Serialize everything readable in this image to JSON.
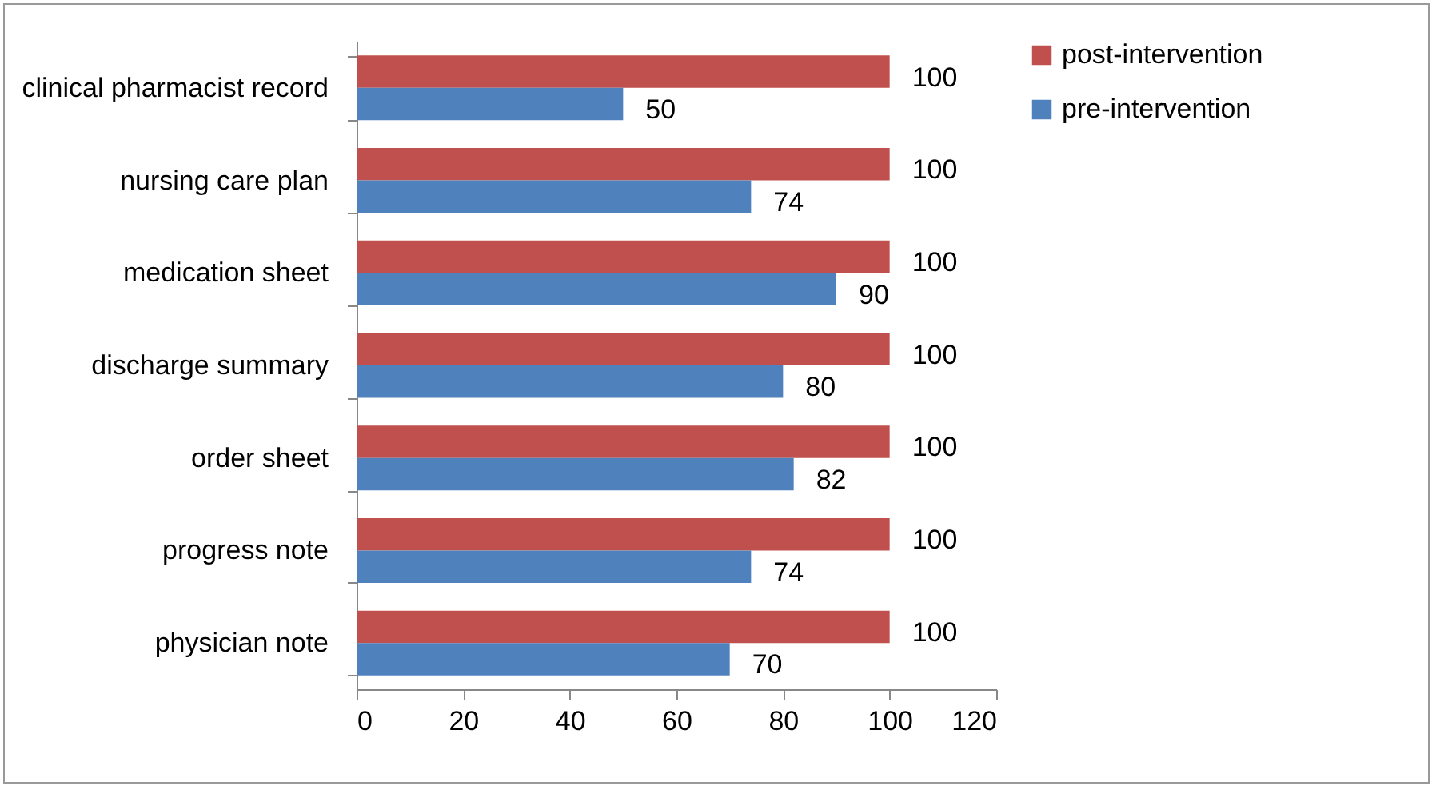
{
  "chart_data": {
    "type": "bar",
    "orientation": "horizontal",
    "categories": [
      "clinical pharmacist record",
      "nursing care plan",
      "medication sheet",
      "discharge summary",
      "order sheet",
      "progress note",
      "physician note"
    ],
    "series": [
      {
        "name": "post-intervention",
        "color": "#c0504d",
        "values": [
          100,
          100,
          100,
          100,
          100,
          100,
          100
        ]
      },
      {
        "name": "pre-intervention",
        "color": "#4f81bd",
        "values": [
          50,
          74,
          90,
          80,
          82,
          74,
          70
        ]
      }
    ],
    "xlim": [
      0,
      120
    ],
    "xticks": [
      0,
      20,
      40,
      60,
      80,
      100,
      120
    ],
    "grid": false,
    "legend": "right",
    "data_labels": true
  }
}
